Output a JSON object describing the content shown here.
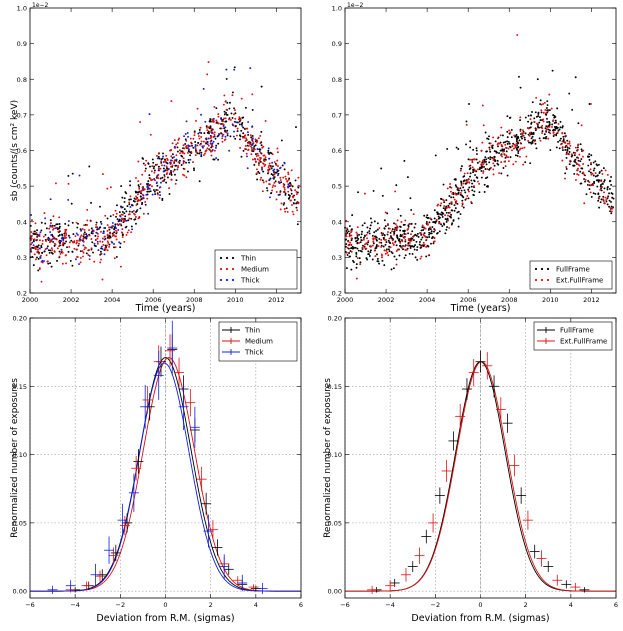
{
  "chart_data": [
    {
      "type": "scatter",
      "title": "",
      "xlabel": "Time (years)",
      "ylabel": "sb (counts/(s cm² keV)",
      "exponent_label": "1e−2",
      "xlim": [
        2000,
        2013.2
      ],
      "ylim": [
        0.2,
        1.0
      ],
      "xticks": [
        "2000",
        "2002",
        "2004",
        "2006",
        "2008",
        "2010",
        "2012"
      ],
      "yticks": [
        "0.2",
        "0.3",
        "0.4",
        "0.5",
        "0.6",
        "0.7",
        "0.8",
        "0.9",
        "1.0"
      ],
      "series": [
        {
          "name": "Thin",
          "color": "#000000",
          "n_points": 600
        },
        {
          "name": "Medium",
          "color": "#e01010",
          "n_points": 600
        },
        {
          "name": "Thick",
          "color": "#1020e0",
          "n_points": 180
        }
      ],
      "trend_years": [
        2000,
        2000.5,
        2001,
        2002,
        2003,
        2003.6,
        2004,
        2005,
        2006,
        2007,
        2008,
        2009,
        2009.8,
        2010.2,
        2011,
        2012,
        2013
      ],
      "trend_values": [
        0.36,
        0.32,
        0.34,
        0.35,
        0.35,
        0.34,
        0.36,
        0.44,
        0.52,
        0.57,
        0.61,
        0.65,
        0.69,
        0.67,
        0.59,
        0.53,
        0.46
      ],
      "legend": "bottom-right"
    },
    {
      "type": "scatter",
      "title": "",
      "xlabel": "Time (years)",
      "ylabel": "",
      "exponent_label": "1e−2",
      "xlim": [
        2000,
        2013.2
      ],
      "ylim": [
        0.2,
        1.0
      ],
      "xticks": [
        "2000",
        "2002",
        "2004",
        "2006",
        "2008",
        "2010",
        "2012"
      ],
      "yticks": [
        "0.2",
        "0.3",
        "0.4",
        "0.5",
        "0.6",
        "0.7",
        "0.8",
        "0.9",
        "1.0"
      ],
      "series": [
        {
          "name": "FullFrame",
          "color": "#000000",
          "n_points": 900
        },
        {
          "name": "Ext.FullFrame",
          "color": "#e01010",
          "n_points": 380
        }
      ],
      "trend_years": [
        2000,
        2000.5,
        2001,
        2002,
        2003,
        2003.6,
        2004,
        2005,
        2006,
        2007,
        2008,
        2009,
        2009.8,
        2010.2,
        2011,
        2012,
        2013
      ],
      "trend_values": [
        0.36,
        0.32,
        0.34,
        0.35,
        0.35,
        0.34,
        0.36,
        0.44,
        0.52,
        0.57,
        0.61,
        0.65,
        0.69,
        0.67,
        0.59,
        0.53,
        0.46
      ],
      "legend": "bottom-right"
    },
    {
      "type": "line",
      "title": "",
      "xlabel": "Deviation from R.M. (sigmas)",
      "ylabel": "Renormalized number of exposures",
      "xlim": [
        -6,
        6
      ],
      "ylim": [
        -0.005,
        0.2
      ],
      "xticks": [
        "−6",
        "−4",
        "−2",
        "0",
        "2",
        "4",
        "6"
      ],
      "yticks": [
        "0.00",
        "0.05",
        "0.10",
        "0.15",
        "0.20"
      ],
      "series": [
        {
          "name": "Thin",
          "color": "#000000",
          "mu": 0.0,
          "sigma": 1.75,
          "amp": 0.171,
          "points": [
            [
              -4.0,
              0.001,
              0.002
            ],
            [
              -3.4,
              0.004,
              0.003
            ],
            [
              -2.8,
              0.012,
              0.004
            ],
            [
              -2.2,
              0.028,
              0.006
            ],
            [
              -1.7,
              0.05,
              0.007
            ],
            [
              -1.2,
              0.095,
              0.009
            ],
            [
              -0.7,
              0.135,
              0.01
            ],
            [
              -0.2,
              0.168,
              0.011
            ],
            [
              0.3,
              0.177,
              0.011
            ],
            [
              0.8,
              0.148,
              0.01
            ],
            [
              1.3,
              0.118,
              0.009
            ],
            [
              1.8,
              0.064,
              0.008
            ],
            [
              2.3,
              0.032,
              0.006
            ],
            [
              2.8,
              0.016,
              0.004
            ],
            [
              3.4,
              0.005,
              0.003
            ],
            [
              4.0,
              0.002,
              0.002
            ]
          ]
        },
        {
          "name": "Medium",
          "color": "#e01010",
          "mu": 0.15,
          "sigma": 1.75,
          "amp": 0.171,
          "points": [
            [
              -4.2,
              0.001,
              0.002
            ],
            [
              -3.5,
              0.004,
              0.003
            ],
            [
              -2.9,
              0.011,
              0.004
            ],
            [
              -2.3,
              0.026,
              0.006
            ],
            [
              -1.8,
              0.048,
              0.007
            ],
            [
              -1.3,
              0.09,
              0.009
            ],
            [
              -0.8,
              0.14,
              0.01
            ],
            [
              -0.3,
              0.168,
              0.012
            ],
            [
              0.2,
              0.176,
              0.012
            ],
            [
              0.6,
              0.16,
              0.011
            ],
            [
              1.1,
              0.138,
              0.01
            ],
            [
              1.6,
              0.082,
              0.009
            ],
            [
              2.1,
              0.045,
              0.007
            ],
            [
              2.6,
              0.02,
              0.005
            ],
            [
              3.2,
              0.008,
              0.003
            ],
            [
              3.9,
              0.003,
              0.002
            ]
          ]
        },
        {
          "name": "Thick",
          "color": "#1020e0",
          "mu": -0.05,
          "sigma": 1.7,
          "amp": 0.167,
          "points": [
            [
              -5.0,
              0.001,
              0.003
            ],
            [
              -4.2,
              0.004,
              0.004
            ],
            [
              -3.1,
              0.012,
              0.008
            ],
            [
              -2.5,
              0.03,
              0.01
            ],
            [
              -1.9,
              0.052,
              0.012
            ],
            [
              -1.4,
              0.072,
              0.014
            ],
            [
              -0.9,
              0.135,
              0.016
            ],
            [
              -0.3,
              0.158,
              0.018
            ],
            [
              0.3,
              0.178,
              0.02
            ],
            [
              0.8,
              0.135,
              0.017
            ],
            [
              1.3,
              0.12,
              0.015
            ],
            [
              1.9,
              0.044,
              0.012
            ],
            [
              2.6,
              0.018,
              0.009
            ],
            [
              3.4,
              0.006,
              0.006
            ],
            [
              4.3,
              0.002,
              0.004
            ]
          ]
        }
      ],
      "legend": "top-right"
    },
    {
      "type": "line",
      "title": "",
      "xlabel": "Deviation from R.M. (sigmas)",
      "ylabel": "Renormalized number of exposures",
      "xlim": [
        -6,
        6
      ],
      "ylim": [
        -0.005,
        0.2
      ],
      "xticks": [
        "−6",
        "−4",
        "−2",
        "0",
        "2",
        "4",
        "6"
      ],
      "yticks": [
        "0.00",
        "0.05",
        "0.10",
        "0.15",
        "0.20"
      ],
      "series": [
        {
          "name": "FullFrame",
          "color": "#000000",
          "mu": 0.0,
          "sigma": 1.7,
          "amp": 0.168,
          "points": [
            [
              -4.6,
              0.001,
              0.002
            ],
            [
              -3.8,
              0.006,
              0.003
            ],
            [
              -3.0,
              0.018,
              0.004
            ],
            [
              -2.4,
              0.04,
              0.005
            ],
            [
              -1.8,
              0.07,
              0.006
            ],
            [
              -1.2,
              0.11,
              0.007
            ],
            [
              -0.6,
              0.148,
              0.008
            ],
            [
              0.0,
              0.168,
              0.008
            ],
            [
              0.6,
              0.15,
              0.008
            ],
            [
              1.2,
              0.123,
              0.007
            ],
            [
              1.8,
              0.07,
              0.006
            ],
            [
              2.4,
              0.029,
              0.005
            ],
            [
              3.0,
              0.018,
              0.004
            ],
            [
              3.8,
              0.005,
              0.003
            ],
            [
              4.6,
              0.001,
              0.002
            ]
          ]
        },
        {
          "name": "Ext.FullFrame",
          "color": "#e01010",
          "mu": 0.05,
          "sigma": 1.72,
          "amp": 0.168,
          "points": [
            [
              -4.8,
              0.001,
              0.003
            ],
            [
              -4.0,
              0.004,
              0.004
            ],
            [
              -3.3,
              0.012,
              0.005
            ],
            [
              -2.7,
              0.026,
              0.006
            ],
            [
              -2.1,
              0.05,
              0.007
            ],
            [
              -1.5,
              0.088,
              0.008
            ],
            [
              -0.9,
              0.128,
              0.009
            ],
            [
              -0.3,
              0.16,
              0.01
            ],
            [
              0.3,
              0.165,
              0.01
            ],
            [
              0.9,
              0.133,
              0.009
            ],
            [
              1.5,
              0.092,
              0.008
            ],
            [
              2.1,
              0.052,
              0.007
            ],
            [
              2.7,
              0.024,
              0.006
            ],
            [
              3.4,
              0.008,
              0.004
            ],
            [
              4.2,
              0.003,
              0.003
            ]
          ]
        }
      ],
      "legend": "top-right"
    }
  ]
}
